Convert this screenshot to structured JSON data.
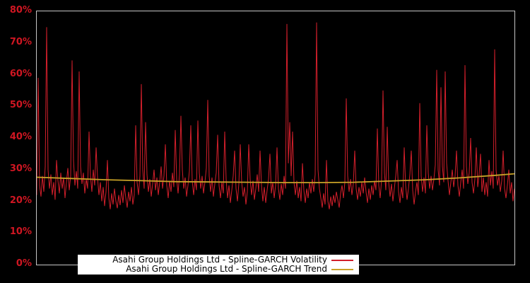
{
  "window": {
    "background_color": "#000000"
  },
  "chart_data": {
    "type": "line",
    "title": "",
    "xlabel": "",
    "ylabel": "",
    "ylim": [
      0,
      80
    ],
    "grid": false,
    "x_axis": {
      "labels": [],
      "visible": false
    },
    "axis_label_color": "#d01622",
    "plot_border_color": "#c6c6c6",
    "legend_position": "bottom-left-inside",
    "y_ticks": [
      {
        "label": "0%",
        "value": 0
      },
      {
        "label": "10%",
        "value": 10
      },
      {
        "label": "20%",
        "value": 20
      },
      {
        "label": "30%",
        "value": 30
      },
      {
        "label": "40%",
        "value": 40
      },
      {
        "label": "50%",
        "value": 50
      },
      {
        "label": "60%",
        "value": 60
      },
      {
        "label": "70%",
        "value": 70
      },
      {
        "label": "80%",
        "value": 80
      }
    ],
    "series": [
      {
        "name": "Asahi Group Holdings Ltd - Spline-GARCH Volatility",
        "role": "volatility",
        "color": "#d21f2b",
        "values": [
          22.0,
          59.0,
          25.0,
          21.5,
          28.0,
          23.0,
          31.0,
          75.0,
          30.0,
          24.0,
          28.5,
          22.0,
          26.0,
          20.5,
          33.0,
          26.5,
          22.5,
          29.0,
          24.0,
          27.5,
          21.0,
          26.0,
          30.5,
          23.5,
          28.0,
          64.5,
          33.0,
          25.0,
          29.5,
          24.0,
          61.0,
          31.0,
          25.5,
          29.0,
          22.5,
          27.0,
          24.0,
          42.0,
          28.0,
          23.0,
          30.0,
          25.0,
          37.0,
          27.5,
          22.0,
          26.0,
          20.0,
          24.5,
          18.5,
          23.0,
          33.0,
          21.0,
          17.5,
          22.5,
          19.0,
          24.0,
          20.0,
          17.8,
          22.0,
          18.8,
          23.5,
          19.5,
          25.0,
          21.0,
          18.0,
          23.0,
          20.0,
          24.5,
          19.0,
          22.0,
          44.0,
          26.0,
          22.0,
          28.0,
          57.0,
          30.0,
          24.0,
          45.0,
          28.5,
          23.0,
          27.0,
          21.5,
          25.5,
          30.0,
          23.5,
          27.5,
          22.0,
          26.0,
          31.0,
          24.0,
          28.0,
          38.0,
          25.0,
          21.0,
          26.5,
          23.0,
          29.0,
          24.5,
          42.5,
          27.0,
          22.5,
          28.5,
          47.0,
          30.0,
          24.0,
          27.5,
          21.5,
          25.0,
          29.5,
          44.0,
          26.5,
          22.0,
          27.0,
          23.5,
          45.5,
          29.0,
          24.0,
          28.0,
          22.5,
          26.0,
          30.5,
          52.0,
          28.0,
          23.0,
          27.5,
          21.5,
          25.5,
          29.0,
          41.0,
          25.0,
          21.0,
          26.0,
          22.5,
          42.0,
          27.0,
          21.0,
          25.0,
          19.5,
          23.5,
          28.0,
          36.0,
          24.0,
          20.0,
          25.5,
          38.0,
          26.0,
          21.5,
          24.5,
          19.0,
          23.0,
          38.0,
          27.0,
          22.0,
          26.5,
          20.5,
          24.0,
          28.5,
          23.0,
          36.0,
          25.0,
          20.0,
          24.5,
          19.5,
          23.5,
          27.0,
          35.0,
          22.5,
          26.0,
          21.0,
          25.0,
          37.0,
          24.0,
          20.5,
          25.5,
          22.0,
          28.0,
          24.0,
          76.0,
          32.0,
          45.0,
          28.0,
          42.0,
          26.0,
          22.0,
          26.5,
          21.0,
          24.5,
          20.0,
          32.0,
          23.5,
          19.5,
          24.0,
          21.0,
          26.0,
          22.5,
          27.0,
          23.0,
          28.5,
          76.5,
          30.0,
          24.0,
          21.0,
          18.0,
          22.5,
          19.0,
          33.0,
          20.0,
          17.5,
          21.5,
          18.5,
          22.0,
          19.5,
          23.0,
          20.5,
          18.0,
          22.5,
          25.0,
          21.0,
          26.0,
          52.5,
          28.0,
          23.0,
          27.0,
          22.0,
          25.5,
          36.0,
          24.0,
          20.5,
          24.5,
          21.5,
          26.0,
          22.5,
          27.5,
          23.0,
          19.5,
          24.0,
          20.5,
          25.0,
          22.0,
          26.5,
          23.5,
          43.0,
          25.0,
          21.0,
          27.0,
          55.0,
          29.0,
          23.5,
          43.5,
          26.0,
          21.5,
          25.5,
          20.0,
          24.0,
          28.0,
          33.0,
          23.0,
          19.5,
          24.5,
          21.0,
          37.0,
          25.0,
          20.5,
          24.0,
          28.5,
          36.0,
          23.5,
          19.0,
          23.0,
          26.0,
          22.0,
          51.0,
          28.0,
          23.0,
          27.5,
          22.5,
          44.0,
          29.0,
          24.0,
          28.0,
          23.5,
          27.0,
          31.5,
          61.5,
          30.0,
          25.0,
          56.0,
          31.0,
          26.0,
          61.0,
          32.0,
          26.5,
          22.0,
          26.0,
          30.0,
          24.5,
          28.0,
          36.0,
          25.0,
          21.5,
          26.0,
          30.0,
          24.0,
          63.0,
          31.0,
          25.5,
          29.0,
          40.0,
          26.0,
          22.5,
          27.0,
          37.0,
          24.5,
          28.5,
          35.0,
          23.0,
          27.5,
          22.0,
          26.0,
          21.5,
          33.0,
          25.0,
          29.5,
          24.0,
          68.0,
          30.0,
          25.0,
          28.0,
          23.0,
          26.5,
          36.0,
          24.0,
          21.0,
          25.0,
          30.0,
          22.5,
          26.0,
          20.0,
          24.0
        ]
      },
      {
        "name": "Asahi Group Holdings Ltd - Spline-GARCH Trend",
        "role": "trend",
        "color": "#c9a227",
        "x_frac": [
          0,
          0.0725,
          0.1465,
          0.2204,
          0.2944,
          0.3683,
          0.4423,
          0.5163,
          0.5902,
          0.6642,
          0.7382,
          0.8121,
          0.8861,
          0.9601,
          1.0
        ],
        "values": [
          27.6,
          27.2,
          26.8,
          26.5,
          26.2,
          26.1,
          26.0,
          25.9,
          25.9,
          26.0,
          26.4,
          26.8,
          27.4,
          28.2,
          28.7
        ]
      }
    ]
  },
  "legend": {
    "rows": [
      {
        "label": "Asahi Group Holdings Ltd - Spline-GARCH Volatility"
      },
      {
        "label": "Asahi Group Holdings Ltd - Spline-GARCH Trend"
      }
    ]
  }
}
